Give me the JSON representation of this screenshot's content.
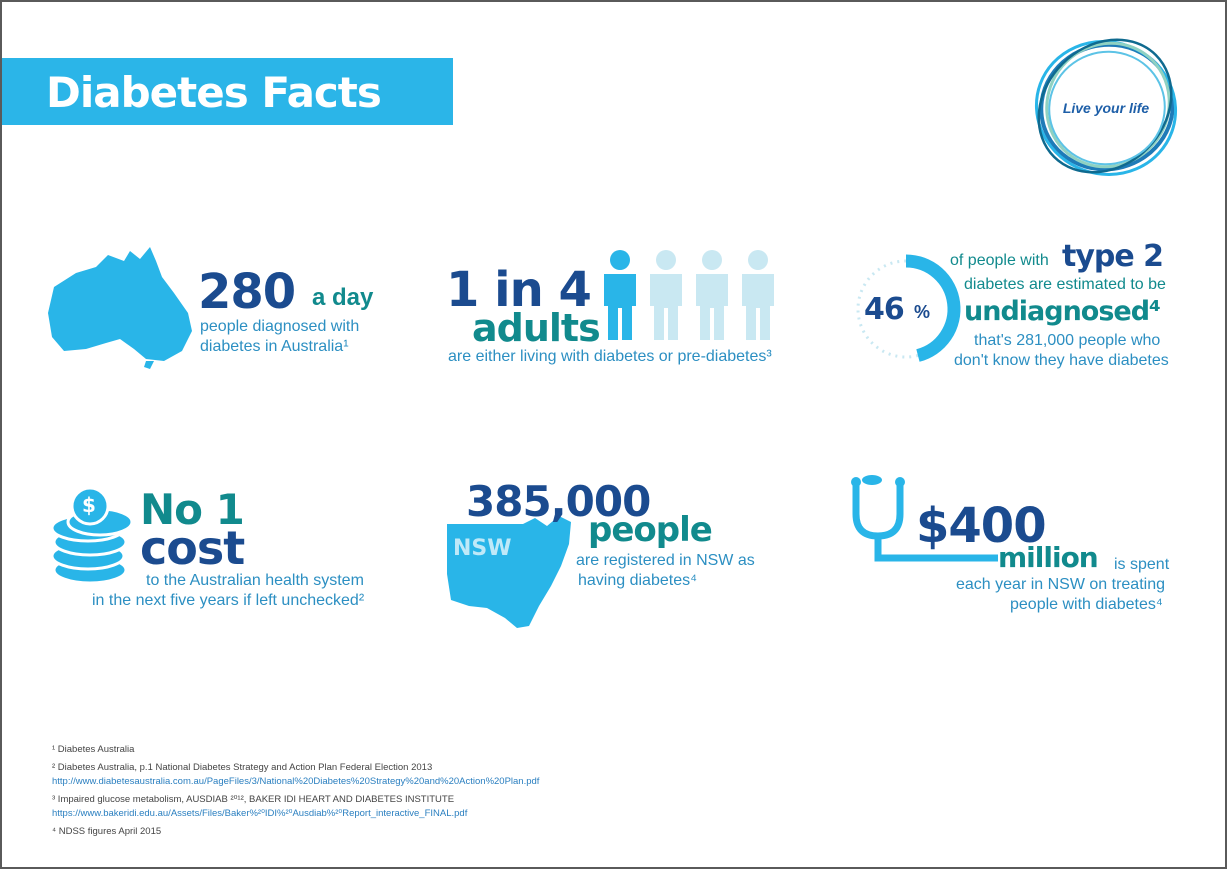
{
  "header": {
    "title": "Diabetes Facts",
    "logo_text": "Live your life"
  },
  "facts": {
    "daily": {
      "number": "280",
      "unit": "a day",
      "line1": "people diagnosed with",
      "line2": "diabetes in Australia¹"
    },
    "adults": {
      "ratio": "1 in 4",
      "label": "adults",
      "caption": "are either living with diabetes or pre-diabetes³",
      "people_total": 4,
      "people_highlighted": 1
    },
    "undiagnosed": {
      "percent": "46",
      "percent_sign": "%",
      "percent_value": 46,
      "line1_pre": "of people with",
      "line1_big": "type 2",
      "line2": "diabetes are estimated to be",
      "line3": "undiagnosed⁴",
      "line4": "that's 281,000 people who",
      "line5": "don't know they have diabetes"
    },
    "cost": {
      "line1": "No 1",
      "line2": "cost",
      "line3": "to the Australian health system",
      "line4": "in the next five years if left unchecked²",
      "coin_symbol": "$"
    },
    "nsw": {
      "number": "385,000",
      "label": "people",
      "map_label": "NSW",
      "line1": "are registered in NSW as",
      "line2": "having diabetes⁴"
    },
    "spend": {
      "amount": "$400",
      "unit": "million",
      "unit_tail": "is spent",
      "line2": "each year in NSW on treating",
      "line3": "people with diabetes⁴"
    }
  },
  "footnotes": [
    {
      "text": "¹ Diabetes Australia",
      "link": ""
    },
    {
      "text": "² Diabetes Australia, p.1 National Diabetes Strategy and Action Plan Federal Election 2013",
      "link": "http://www.diabetesaustralia.com.au/PageFiles/3/National%20Diabetes%20Strategy%20and%20Action%20Plan.pdf"
    },
    {
      "text": "³ Impaired glucose metabolism, AUSDIAB ²⁰¹², BAKER IDI HEART AND DIABETES INSTITUTE",
      "link": "https://www.bakeridi.edu.au/Assets/Files/Baker%²⁰IDI%²⁰Ausdiab%²⁰Report_interactive_FINAL.pdf"
    },
    {
      "text": "⁴ NDSS figures April 2015",
      "link": ""
    }
  ],
  "colors": {
    "banner": "#2bb5e8",
    "navy": "#1b4b8f",
    "teal": "#118a8d",
    "light_blue": "#29b5e8",
    "pale_blue": "#c9e8f2"
  },
  "icons": [
    "australia-map-icon",
    "person-icon",
    "donut-progress-icon",
    "coin-stack-icon",
    "nsw-map-icon",
    "stethoscope-icon",
    "logo-rings-icon"
  ]
}
